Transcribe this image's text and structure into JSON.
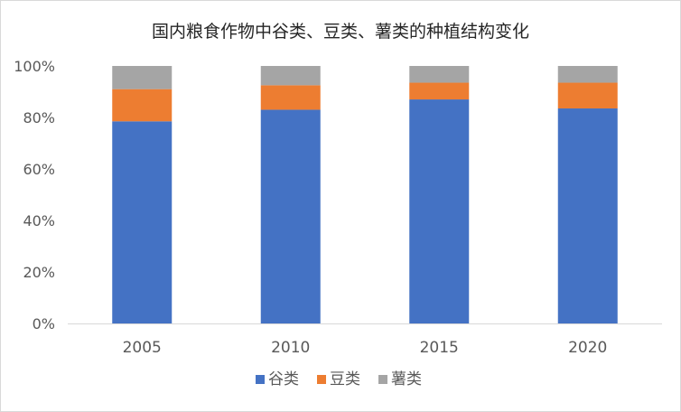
{
  "chart_data": {
    "type": "bar",
    "stacked": true,
    "title": "国内粮食作物中谷类、豆类、薯类的种植结构变化",
    "xlabel": "",
    "ylabel": "",
    "categories": [
      "2005",
      "2010",
      "2015",
      "2020"
    ],
    "series": [
      {
        "name": "谷类",
        "color": "#4472C4",
        "values": [
          78.5,
          83,
          87,
          83.5
        ]
      },
      {
        "name": "豆类",
        "color": "#ED7D31",
        "values": [
          12.5,
          9.5,
          6.5,
          10
        ]
      },
      {
        "name": "薯类",
        "color": "#A5A5A5",
        "values": [
          9,
          7.5,
          6.5,
          6.5
        ]
      }
    ],
    "ylim": [
      0,
      100
    ],
    "yticks": [
      "0%",
      "20%",
      "40%",
      "60%",
      "80%",
      "100%"
    ],
    "ytick_values": [
      0,
      20,
      40,
      60,
      80,
      100
    ],
    "grid": false,
    "legend": "bottom"
  }
}
